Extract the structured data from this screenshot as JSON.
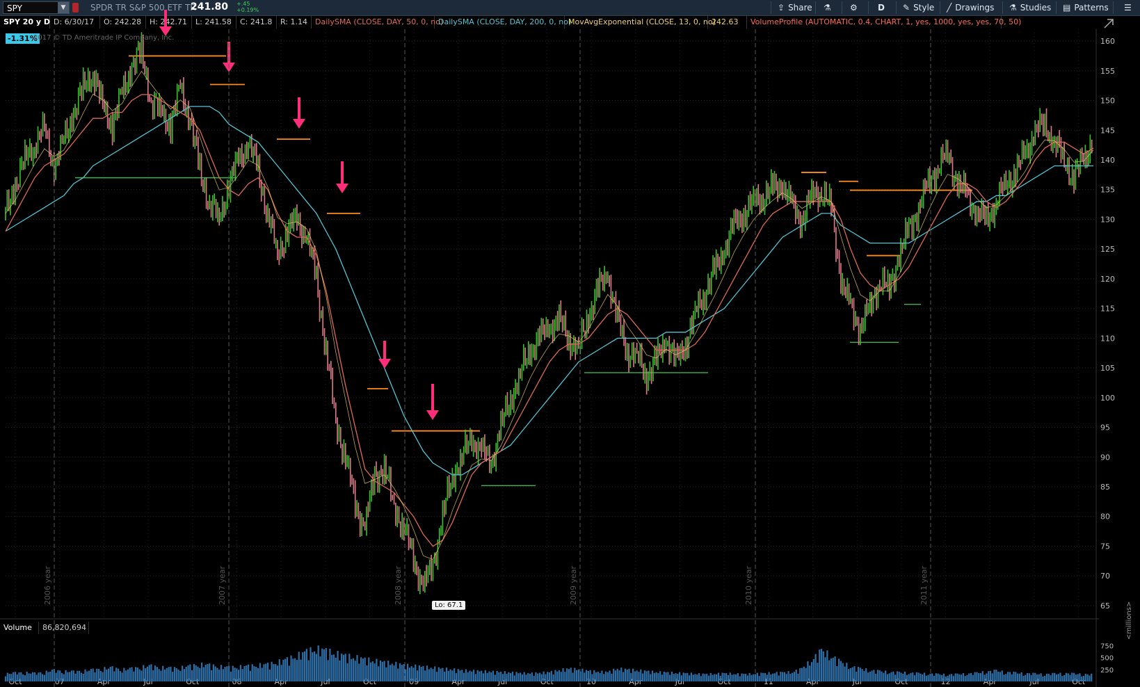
{
  "toolbar": {
    "symbol": "SPY",
    "description": "SPDR TR S&P 500 ETF TR",
    "last_price": "241.80",
    "change_abs": "+.45",
    "change_pct": "+0.19%",
    "share_label": "Share",
    "period_label": "D",
    "style_label": "Style",
    "drawings_label": "Drawings",
    "studies_label": "Studies",
    "patterns_label": "Patterns"
  },
  "infobar": {
    "chart_spec": "SPY 20 y D",
    "date": "D: 6/30/17",
    "open": "O: 242.28",
    "high": "H: 242.71",
    "low": "L: 241.58",
    "close": "C: 241.8",
    "range": "R: 1.14",
    "study1": "DailySMA (CLOSE, DAY, 50, 0, no)",
    "study2": "DailySMA (CLOSE, DAY, 200, 0, no)",
    "study3": "MovAvgExponential (CLOSE, 13, 0, no)",
    "study3_value": "242.63",
    "study4": "VolumeProfile (AUTOMATIC, 0.4, CHART, 1, yes, 1000, yes, yes, 70, 50)"
  },
  "overlay": {
    "badge": "-1.31%",
    "copyright": "2017 © TD Ameritrade IP Company, Inc.",
    "low_label": "Lo: 67.1"
  },
  "volume": {
    "label": "Volume",
    "value": "86,820,694",
    "units": "<millions>",
    "ticks": [
      "750",
      "500",
      "250"
    ]
  },
  "colors": {
    "sma50": "#e06a55",
    "sma200": "#52c4d4",
    "ema13": "#f0d060",
    "study4": "#ff6a4d",
    "resistance": "#ff8c1a",
    "support": "#39b54a",
    "arrow": "#ff2d7a",
    "up_candle": "#39c42a",
    "down_candle": "#e07a8a",
    "volume_bar": "#2f6fa8"
  },
  "chart_data": {
    "type": "line",
    "ylim": [
      63,
      162
    ],
    "y_ticks": [
      160,
      155,
      150,
      145,
      140,
      135,
      130,
      125,
      120,
      115,
      110,
      105,
      100,
      95,
      90,
      85,
      80,
      75,
      70,
      65
    ],
    "x_tick_labels": [
      "Oct",
      "07",
      "Apr",
      "Jul",
      "Oct",
      "08",
      "Apr",
      "Jul",
      "Oct",
      "09",
      "Apr",
      "Jul",
      "Oct",
      "10",
      "Apr",
      "Jul",
      "Oct",
      "11",
      "Apr",
      "Jul",
      "Oct",
      "12",
      "Apr",
      "Jul",
      "Oct"
    ],
    "year_markers": [
      "2006 year",
      "2007 year",
      "2008 year",
      "2009 year",
      "2010 year",
      "2011 year"
    ],
    "price": [
      131,
      136,
      140,
      143,
      145,
      139,
      143,
      148,
      152,
      155,
      149,
      146,
      151,
      156,
      158,
      150,
      148,
      146,
      152,
      147,
      138,
      133,
      130,
      136,
      140,
      143,
      138,
      131,
      124,
      128,
      130,
      127,
      120,
      108,
      96,
      90,
      82,
      78,
      87,
      88,
      82,
      78,
      73,
      68,
      72,
      80,
      87,
      90,
      93,
      91,
      89,
      95,
      100,
      104,
      108,
      110,
      112,
      113,
      110,
      108,
      114,
      118,
      121,
      113,
      108,
      107,
      104,
      106,
      110,
      106,
      109,
      114,
      118,
      121,
      125,
      129,
      131,
      133,
      134,
      135,
      136,
      132,
      130,
      134,
      135,
      132,
      120,
      115,
      112,
      115,
      120,
      118,
      124,
      128,
      132,
      136,
      139,
      141,
      136,
      134,
      131,
      130,
      133,
      136,
      138,
      141,
      145,
      146,
      143,
      140,
      137,
      140,
      144
    ],
    "sma50": [
      128,
      131,
      134,
      137,
      139,
      140,
      141,
      143,
      145,
      147,
      147,
      148,
      148,
      150,
      151,
      151,
      150,
      149,
      148,
      147,
      145,
      141,
      137,
      135,
      134,
      136,
      137,
      135,
      131,
      128,
      127,
      127,
      124,
      118,
      110,
      102,
      95,
      88,
      86,
      85,
      84,
      82,
      80,
      77,
      75,
      76,
      79,
      83,
      87,
      89,
      90,
      91,
      94,
      97,
      100,
      103,
      106,
      108,
      109,
      109,
      110,
      112,
      114,
      115,
      114,
      112,
      110,
      108,
      108,
      108,
      108,
      109,
      111,
      114,
      117,
      120,
      123,
      126,
      129,
      131,
      132,
      133,
      133,
      133,
      133,
      133,
      130,
      125,
      121,
      119,
      118,
      119,
      120,
      122,
      125,
      128,
      131,
      134,
      136,
      136,
      135,
      133,
      132,
      133,
      135,
      137,
      140,
      142,
      143,
      143,
      142,
      141,
      142
    ],
    "sma200": [
      128,
      129,
      130,
      131,
      132,
      133,
      134,
      136,
      137,
      139,
      140,
      141,
      142,
      143,
      144,
      145,
      146,
      147,
      148,
      149,
      149,
      149,
      148,
      146,
      145,
      144,
      143,
      141,
      139,
      137,
      135,
      133,
      131,
      128,
      125,
      121,
      117,
      113,
      109,
      105,
      101,
      97,
      94,
      91,
      89,
      88,
      87,
      87,
      88,
      89,
      90,
      91,
      92,
      94,
      96,
      98,
      100,
      102,
      104,
      106,
      107,
      108,
      109,
      110,
      110,
      110,
      110,
      110,
      111,
      111,
      111,
      112,
      113,
      114,
      115,
      117,
      119,
      121,
      123,
      125,
      127,
      128,
      129,
      130,
      131,
      131,
      129,
      128,
      127,
      126,
      126,
      126,
      126,
      126,
      127,
      128,
      129,
      130,
      131,
      132,
      133,
      133,
      134,
      134,
      135,
      136,
      137,
      138,
      139,
      139,
      139,
      139,
      139
    ],
    "resistance_levels": [
      157.5,
      152.7,
      143.5,
      131,
      101.5,
      94.4,
      137.9,
      136.4,
      134.9,
      123.9
    ],
    "support_levels": [
      137,
      85.2,
      104.2,
      109.3,
      115.7
    ],
    "volume_millions": [
      180,
      200,
      210,
      190,
      220,
      260,
      240,
      230,
      250,
      270,
      300,
      320,
      280,
      300,
      340,
      360,
      330,
      310,
      320,
      360,
      400,
      380,
      350,
      330,
      340,
      360,
      380,
      400,
      450,
      520,
      600,
      700,
      760,
      720,
      650,
      600,
      560,
      520,
      480,
      450,
      420,
      380,
      360,
      340,
      320,
      300,
      280,
      260,
      250,
      240,
      230,
      220,
      210,
      200,
      190,
      200,
      220,
      260,
      300,
      280,
      250,
      230,
      220,
      300,
      280,
      260,
      240,
      220,
      210,
      200,
      190,
      180,
      170,
      180,
      190,
      180,
      170,
      180,
      190,
      200,
      210,
      220,
      300,
      500,
      720,
      600,
      450,
      350,
      300,
      260,
      240,
      220,
      210,
      200,
      190,
      180,
      170,
      160,
      170,
      180,
      200,
      230,
      250,
      220,
      200,
      190,
      180,
      170,
      180,
      190,
      180,
      170,
      160
    ]
  }
}
